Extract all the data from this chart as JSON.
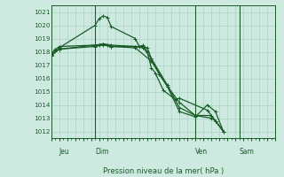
{
  "title": "Pression niveau de la mer( hPa )",
  "background_color": "#ceeae0",
  "grid_color": "#a8d5c5",
  "line_color": "#1a5c28",
  "ylim": [
    1011.5,
    1021.5
  ],
  "yticks": [
    1012,
    1013,
    1014,
    1015,
    1016,
    1017,
    1018,
    1019,
    1020,
    1021
  ],
  "xlim": [
    0,
    28
  ],
  "day_labels": [
    "Jeu",
    "Dim",
    "Ven",
    "Sam"
  ],
  "day_positions": [
    1.0,
    5.5,
    18.0,
    23.5
  ],
  "day_vlines": [
    5.5,
    18.0,
    23.5
  ],
  "series": [
    {
      "x": [
        0,
        0.5,
        1.0,
        5.5,
        6.0,
        6.5,
        7.0,
        7.5,
        10.5,
        11.0,
        11.5,
        12.0,
        12.5,
        13.0,
        14.0,
        15.5,
        16.0,
        19.5,
        20.5,
        21.5
      ],
      "y": [
        1017.8,
        1018.2,
        1018.3,
        1020.0,
        1020.5,
        1020.7,
        1020.6,
        1019.9,
        1019.0,
        1018.4,
        1018.5,
        1018.0,
        1016.8,
        1016.4,
        1015.1,
        1014.4,
        1014.5,
        1013.6,
        1012.8,
        1012.0
      ]
    },
    {
      "x": [
        0,
        1.0,
        5.5,
        6.0,
        6.5,
        7.0,
        7.5,
        10.5,
        11.5,
        12.0,
        12.5,
        13.5,
        14.5,
        16.0,
        18.0,
        20.0,
        20.5,
        21.5
      ],
      "y": [
        1017.8,
        1018.4,
        1018.5,
        1018.5,
        1018.6,
        1018.5,
        1018.4,
        1018.4,
        1018.4,
        1018.3,
        1017.5,
        1016.3,
        1015.4,
        1014.2,
        1013.2,
        1013.0,
        1012.8,
        1012.0
      ]
    },
    {
      "x": [
        0,
        1.0,
        5.5,
        6.5,
        7.5,
        10.5,
        11.5,
        12.5,
        14.5,
        16.0,
        18.0,
        20.0,
        21.5
      ],
      "y": [
        1017.7,
        1018.2,
        1018.5,
        1018.6,
        1018.5,
        1018.4,
        1018.3,
        1017.5,
        1015.5,
        1013.8,
        1013.2,
        1013.2,
        1012.0
      ]
    },
    {
      "x": [
        0,
        1.0,
        5.5,
        6.5,
        7.5,
        10.5,
        12.5,
        14.5,
        16.0,
        18.0,
        19.5,
        20.5,
        21.5
      ],
      "y": [
        1017.7,
        1018.2,
        1018.4,
        1018.5,
        1018.4,
        1018.3,
        1017.3,
        1015.4,
        1013.5,
        1013.1,
        1014.0,
        1013.5,
        1012.0
      ]
    }
  ]
}
